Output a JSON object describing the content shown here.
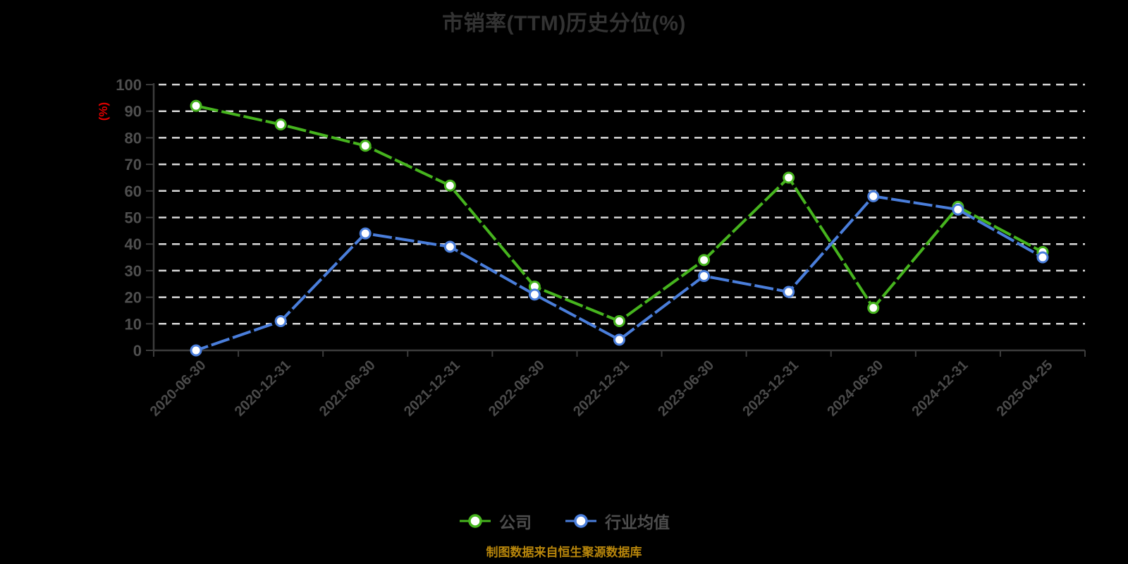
{
  "chart": {
    "title": "市销率(TTM)历史分位(%)",
    "y_unit": "(%)",
    "source_note": "制图数据来自恒生聚源数据库",
    "colors": {
      "background": "#000000",
      "title_text": "#333333",
      "axis_label": "#4f4f4f",
      "axis_line": "#3c3c3c",
      "gridline": "#d9d9d9",
      "unit_label": "#e00000",
      "legend_text": "#4d4d4d",
      "source_text": "#b8860b",
      "company_series": "#46b41e",
      "industry_series": "#4a7edb",
      "marker_fill": "#ffffff"
    }
  },
  "chart_data": {
    "type": "line",
    "title": "市销率(TTM)历史分位(%)",
    "categories": [
      "2020-06-30",
      "2020-12-31",
      "2021-06-30",
      "2021-12-31",
      "2022-06-30",
      "2022-12-31",
      "2023-06-30",
      "2023-12-31",
      "2024-06-30",
      "2024-12-31",
      "2025-04-25"
    ],
    "series": [
      {
        "id": "company",
        "name": "公司",
        "color": "#46b41e",
        "values": [
          92,
          85,
          77,
          62,
          24,
          11,
          34,
          65,
          16,
          54,
          37
        ]
      },
      {
        "id": "industry-average",
        "name": "行业均值",
        "color": "#4a7edb",
        "values": [
          0,
          11,
          44,
          39,
          21,
          4,
          28,
          22,
          58,
          53,
          35
        ]
      }
    ],
    "xlabel": "",
    "ylabel": "(%)",
    "ylim": [
      0,
      100
    ],
    "y_ticks": [
      0,
      10,
      20,
      30,
      40,
      50,
      60,
      70,
      80,
      90,
      100
    ],
    "grid": "horizontal-dashed-white",
    "legend_position": "bottom-center",
    "x_label_rotation": -45,
    "marker": "empty-circle"
  }
}
